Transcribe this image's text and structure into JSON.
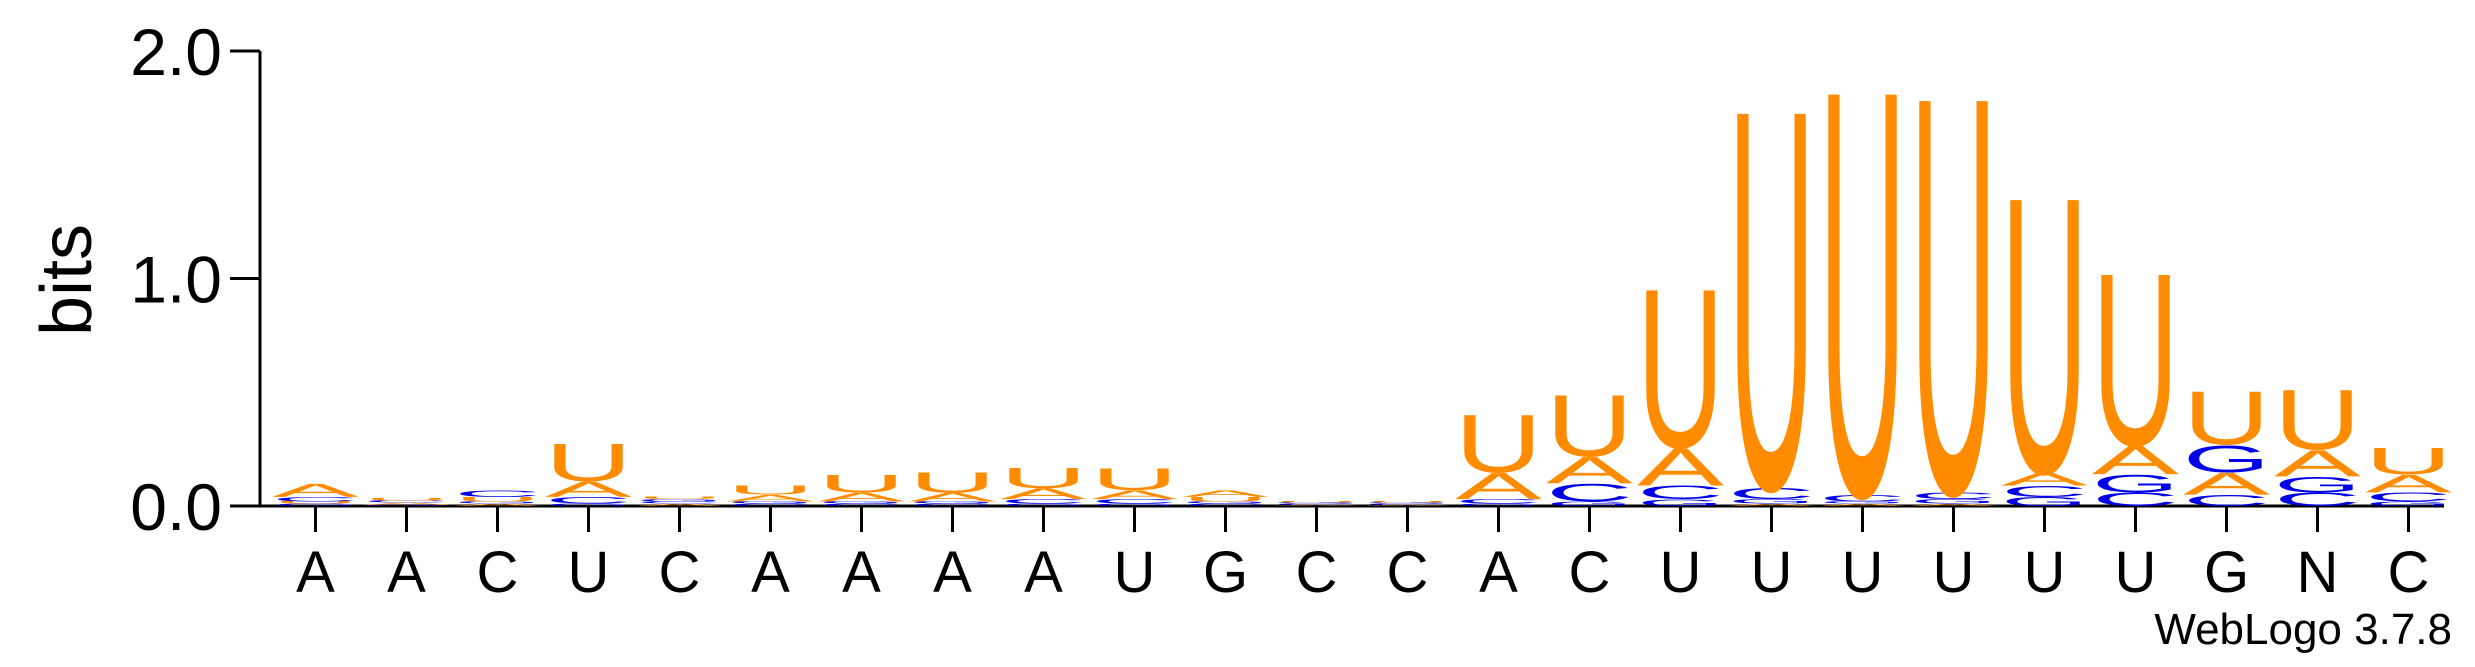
{
  "chart_data": {
    "type": "logo",
    "y_label": "bits",
    "footer": "WebLogo 3.7.8",
    "categories": [
      "A",
      "A",
      "C",
      "U",
      "C",
      "A",
      "A",
      "A",
      "A",
      "U",
      "G",
      "C",
      "C",
      "A",
      "C",
      "U",
      "U",
      "U",
      "U",
      "U",
      "U",
      "G",
      "N",
      "C"
    ],
    "series": [
      {
        "name": "A",
        "color": "#ff8c00",
        "values": [
          0.06,
          0.01,
          0.01,
          0.07,
          0.01,
          0.03,
          0.04,
          0.04,
          0.05,
          0.04,
          0.03,
          0.005,
          0.005,
          0.12,
          0.12,
          0.17,
          0.01,
          0.01,
          0.01,
          0.06,
          0.13,
          0.1,
          0.12,
          0.08
        ]
      },
      {
        "name": "C",
        "color": "#0000e6",
        "values": [
          0.02,
          0.01,
          0.03,
          0.03,
          0.01,
          0.01,
          0.01,
          0.01,
          0.02,
          0.02,
          0.01,
          0.005,
          0.005,
          0.02,
          0.08,
          0.06,
          0.05,
          0.03,
          0.03,
          0.05,
          0.06,
          0.05,
          0.06,
          0.04
        ]
      },
      {
        "name": "G",
        "color": "#0000e6",
        "values": [
          0.01,
          0.005,
          0.01,
          0.01,
          0.01,
          0.01,
          0.01,
          0.01,
          0.01,
          0.01,
          0.01,
          0.005,
          0.005,
          0.01,
          0.02,
          0.03,
          0.02,
          0.01,
          0.02,
          0.04,
          0.08,
          0.12,
          0.07,
          0.02
        ]
      },
      {
        "name": "U",
        "color": "#ff8c00",
        "values": [
          0.01,
          0.01,
          0.02,
          0.17,
          0.01,
          0.04,
          0.08,
          0.09,
          0.09,
          0.1,
          0.02,
          0.005,
          0.005,
          0.26,
          0.28,
          0.72,
          1.72,
          1.84,
          1.8,
          1.25,
          0.78,
          0.24,
          0.27,
          0.12
        ]
      }
    ],
    "ylim": [
      0,
      2
    ],
    "yticks": [
      {
        "value": 0,
        "label": "0.0"
      },
      {
        "value": 1,
        "label": "1.0"
      },
      {
        "value": 2,
        "label": "2.0"
      }
    ]
  }
}
